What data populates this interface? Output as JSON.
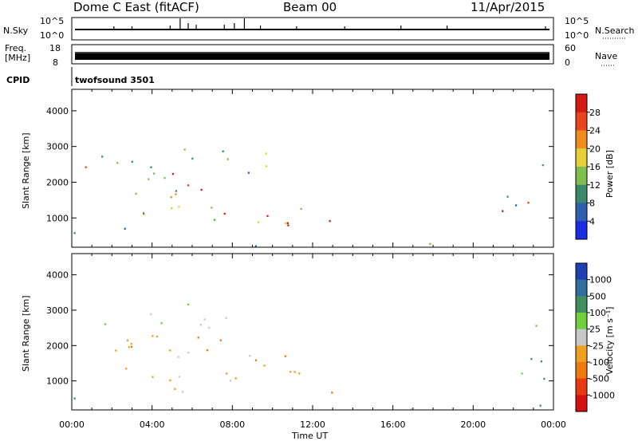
{
  "header": {
    "station": "Dome C East (fitACF)",
    "beam": "Beam 00",
    "date": "11/Apr/2015"
  },
  "param_panel": {
    "nsky_label": "N.Sky",
    "nsky_ticks": [
      "10^5",
      "10^0"
    ],
    "nsearch_label": "N.Search",
    "nsearch_ticks": [
      "10^5",
      "10^0"
    ],
    "freq_label_1": "Freq.",
    "freq_label_2": "[MHz]",
    "freq_ticks": [
      "18",
      "8"
    ],
    "nave_label": "Nave",
    "nave_ticks": [
      "60",
      "0"
    ],
    "cpid_label": "CPID",
    "cpid_value": "twofsound 3501"
  },
  "chart_data": [
    {
      "type": "heatmap",
      "name": "power",
      "ylabel": "Slant Range [km]",
      "ylim": [
        180,
        4600
      ],
      "yticks": [
        "1000",
        "2000",
        "3000",
        "4000"
      ],
      "colorbar_label": "Power [dB]",
      "colorbar_ticks": [
        "4",
        "8",
        "12",
        "16",
        "20",
        "24",
        "28"
      ],
      "colors": [
        "#1a2ee6",
        "#2f5fb0",
        "#3a8a6a",
        "#7fbf4f",
        "#e6d03a",
        "#f08c1e",
        "#e8451c",
        "#d41a12"
      ]
    },
    {
      "type": "heatmap",
      "name": "velocity",
      "ylabel": "Slant Range [km]",
      "ylim": [
        180,
        4600
      ],
      "yticks": [
        "1000",
        "2000",
        "3000",
        "4000"
      ],
      "colorbar_label": "Velocity [m s⁻¹]",
      "colorbar_ticks": [
        "1000",
        "500",
        "100",
        "25",
        "-25",
        "-100",
        "-500",
        "-1000"
      ],
      "colors": [
        "#1f3fb5",
        "#2f6f9f",
        "#3f8f5f",
        "#6fcf3f",
        "#c8c8c8",
        "#f0a020",
        "#f07a10",
        "#e83a10",
        "#d41010"
      ]
    }
  ],
  "time_axis": {
    "xlabel": "Time UT",
    "ticks": [
      "00:00",
      "04:00",
      "08:00",
      "12:00",
      "16:00",
      "20:00",
      "00:00"
    ]
  }
}
